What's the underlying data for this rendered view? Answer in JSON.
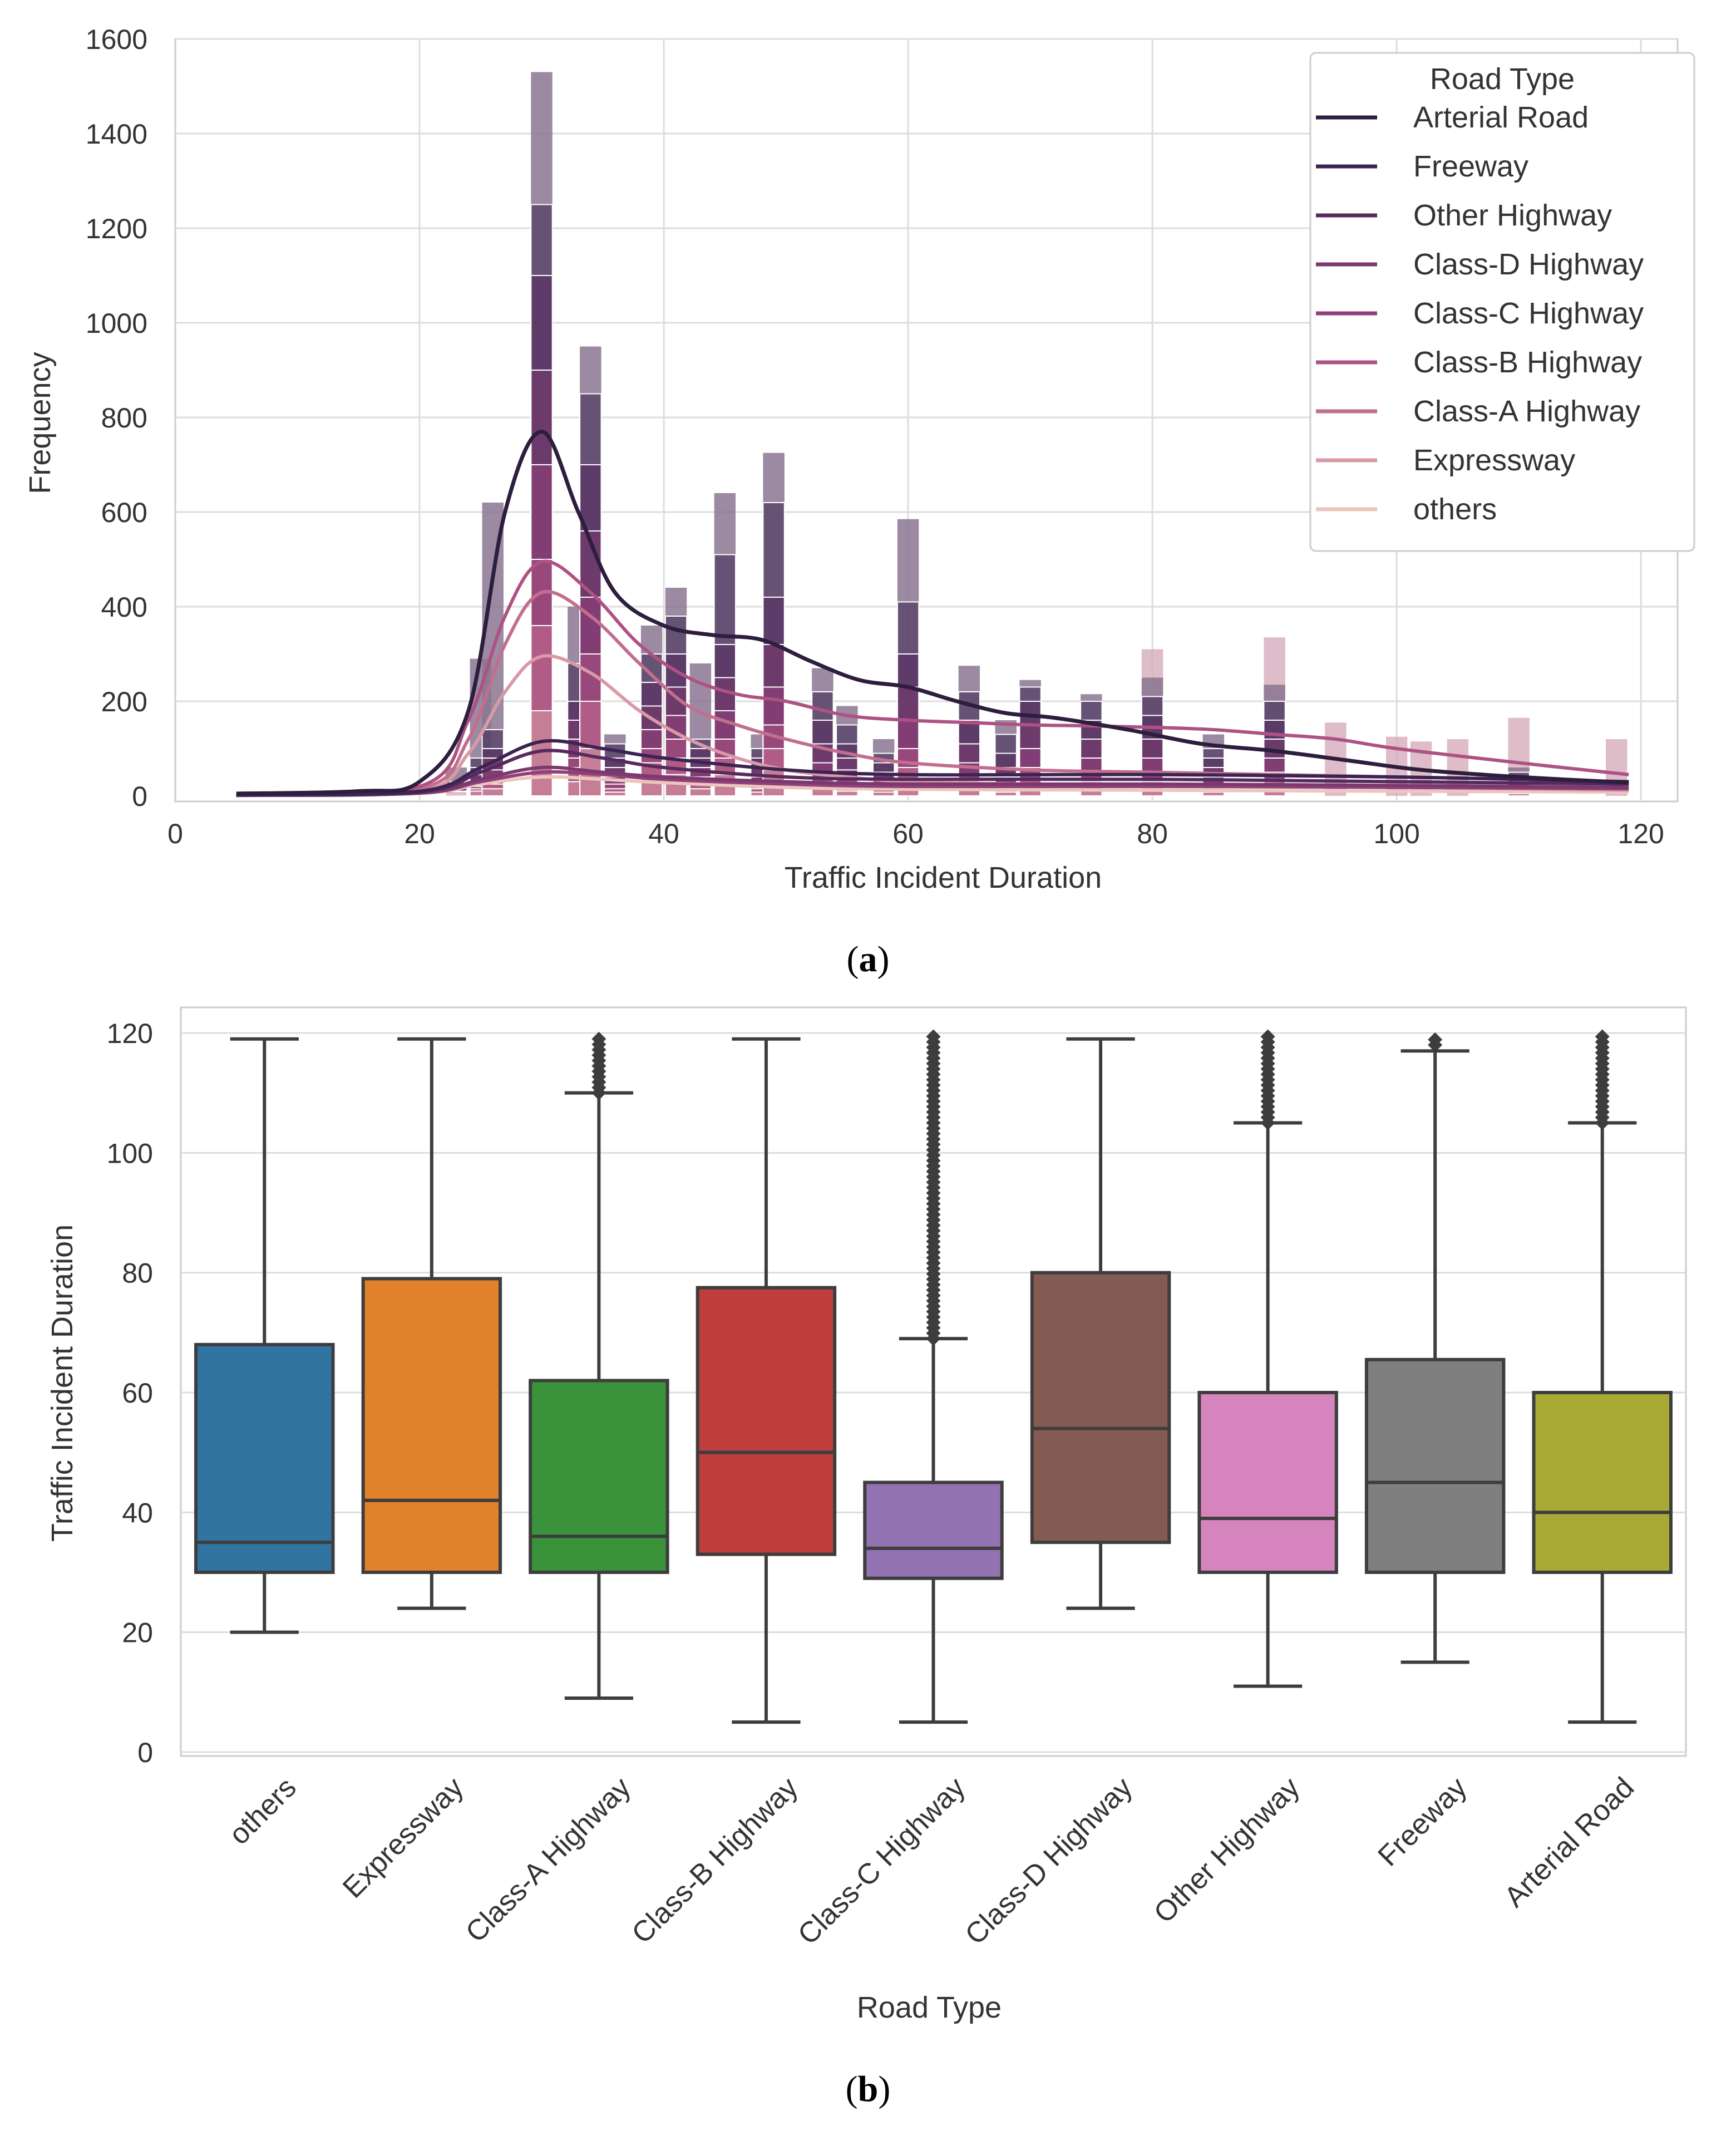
{
  "chart_data": [
    {
      "type": "histogram",
      "panel_label": [
        "(",
        "a",
        ")"
      ],
      "xlabel": "Traffic Incident Duration",
      "ylabel": "Frequency",
      "xlim": [
        0,
        123
      ],
      "ylim": [
        0,
        1600
      ],
      "xticks": [
        0,
        20,
        40,
        60,
        80,
        100,
        120
      ],
      "yticks": [
        0,
        200,
        400,
        600,
        800,
        1000,
        1200,
        1400,
        1600
      ],
      "grid": true,
      "legend_title": "Road Type",
      "legend_position": "top-right",
      "series_order": [
        "Arterial Road",
        "Freeway",
        "Other Highway",
        "Class-D Highway",
        "Class-C Highway",
        "Class-B Highway",
        "Class-A Highway",
        "Expressway",
        "others"
      ],
      "colors": [
        "#2d1e3e",
        "#3b2452",
        "#572a5e",
        "#7a3a6e",
        "#933f7c",
        "#ad5283",
        "#c26e8e",
        "#d89aa6",
        "#ebc6bc"
      ],
      "bar_color": "#8a7590",
      "bar_color_light": "#d3a5b7",
      "stack_values": [
        [
          23,
          60,
          25,
          30,
          20,
          10,
          8,
          8,
          4
        ],
        [
          25,
          290,
          80,
          60,
          45,
          30,
          20,
          15,
          10
        ],
        [
          26,
          620,
          140,
          100,
          80,
          55,
          35,
          25,
          15
        ],
        [
          30,
          1530,
          1250,
          1100,
          900,
          700,
          500,
          360,
          180
        ],
        [
          33,
          400,
          280,
          200,
          160,
          120,
          80,
          60,
          30
        ],
        [
          34,
          950,
          850,
          700,
          560,
          420,
          300,
          200,
          100
        ],
        [
          36,
          130,
          110,
          80,
          60,
          40,
          25,
          15,
          8
        ],
        [
          39,
          360,
          300,
          240,
          190,
          140,
          100,
          70,
          40
        ],
        [
          41,
          440,
          380,
          300,
          230,
          170,
          120,
          80,
          45
        ],
        [
          43,
          280,
          120,
          100,
          80,
          60,
          40,
          25,
          15
        ],
        [
          45,
          640,
          510,
          320,
          250,
          180,
          120,
          80,
          45
        ],
        [
          48,
          130,
          100,
          80,
          60,
          40,
          25,
          15,
          8
        ],
        [
          49,
          725,
          620,
          420,
          320,
          230,
          150,
          100,
          55
        ],
        [
          53,
          270,
          220,
          160,
          110,
          70,
          45,
          30,
          15
        ],
        [
          55,
          190,
          150,
          110,
          80,
          55,
          35,
          20,
          10
        ],
        [
          58,
          120,
          90,
          70,
          50,
          35,
          25,
          15,
          8
        ],
        [
          60,
          585,
          410,
          300,
          230,
          160,
          100,
          60,
          30
        ],
        [
          65,
          275,
          220,
          160,
          110,
          70,
          45,
          30,
          15
        ],
        [
          68,
          160,
          130,
          90,
          60,
          40,
          25,
          15,
          8
        ],
        [
          70,
          245,
          230,
          200,
          150,
          100,
          60,
          35,
          18
        ],
        [
          75,
          215,
          200,
          160,
          120,
          80,
          50,
          30,
          15
        ],
        [
          80,
          250,
          210,
          170,
          120,
          80,
          50,
          30,
          15
        ],
        [
          85,
          130,
          100,
          80,
          60,
          40,
          25,
          15,
          8
        ],
        [
          90,
          235,
          200,
          160,
          120,
          80,
          50,
          30,
          15
        ],
        [
          110,
          60,
          50,
          40,
          30,
          20,
          15,
          10,
          5
        ]
      ],
      "light_bars": [
        [
          80,
          310
        ],
        [
          90,
          335
        ],
        [
          95,
          155
        ],
        [
          100,
          125
        ],
        [
          102,
          115
        ],
        [
          105,
          120
        ],
        [
          110,
          165
        ],
        [
          118,
          120
        ]
      ],
      "kde": [
        {
          "name": "Arterial Road",
          "x": [
            5,
            15,
            20,
            24,
            27,
            30,
            33,
            36,
            40,
            44,
            48,
            52,
            56,
            60,
            64,
            68,
            72,
            78,
            84,
            90,
            96,
            102,
            110,
            119
          ],
          "y": [
            5,
            10,
            30,
            180,
            600,
            770,
            600,
            430,
            360,
            340,
            330,
            285,
            245,
            230,
            200,
            175,
            165,
            140,
            110,
            95,
            75,
            55,
            40,
            28
          ]
        },
        {
          "name": "Freeway",
          "x": [
            5,
            20,
            25,
            30,
            35,
            40,
            50,
            60,
            80,
            100,
            119
          ],
          "y": [
            2,
            10,
            60,
            115,
            100,
            80,
            55,
            45,
            45,
            40,
            30
          ]
        },
        {
          "name": "Other Highway",
          "x": [
            5,
            20,
            25,
            30,
            35,
            40,
            50,
            60,
            80,
            100,
            119
          ],
          "y": [
            2,
            8,
            50,
            95,
            80,
            60,
            40,
            35,
            35,
            30,
            25
          ]
        },
        {
          "name": "Class-D Highway",
          "x": [
            5,
            20,
            25,
            30,
            35,
            40,
            50,
            60,
            80,
            100,
            119
          ],
          "y": [
            1,
            6,
            35,
            60,
            50,
            40,
            30,
            25,
            25,
            22,
            18
          ]
        },
        {
          "name": "Class-C Highway",
          "x": [
            5,
            20,
            25,
            30,
            35,
            40,
            50,
            60,
            80,
            100,
            119
          ],
          "y": [
            1,
            6,
            30,
            50,
            45,
            35,
            25,
            20,
            20,
            18,
            15
          ]
        },
        {
          "name": "Class-B Highway",
          "x": [
            5,
            20,
            24,
            27,
            30,
            34,
            38,
            42,
            46,
            50,
            55,
            60,
            65,
            70,
            75,
            80,
            85,
            90,
            95,
            100,
            110,
            119
          ],
          "y": [
            2,
            20,
            160,
            380,
            495,
            430,
            320,
            250,
            215,
            200,
            170,
            160,
            155,
            150,
            148,
            145,
            140,
            130,
            120,
            100,
            70,
            45
          ]
        },
        {
          "name": "Class-A Highway",
          "x": [
            5,
            20,
            24,
            27,
            30,
            34,
            38,
            42,
            46,
            50,
            55,
            60,
            70,
            80,
            90,
            100,
            110,
            119
          ],
          "y": [
            2,
            15,
            120,
            320,
            430,
            380,
            280,
            190,
            150,
            120,
            90,
            70,
            55,
            50,
            45,
            40,
            35,
            30
          ]
        },
        {
          "name": "Expressway",
          "x": [
            5,
            20,
            24,
            27,
            30,
            34,
            38,
            42,
            46,
            50,
            55,
            60,
            70,
            80,
            90,
            100,
            110,
            119
          ],
          "y": [
            2,
            10,
            90,
            220,
            295,
            260,
            180,
            120,
            80,
            55,
            40,
            30,
            25,
            22,
            20,
            18,
            15,
            12
          ]
        },
        {
          "name": "others",
          "x": [
            5,
            20,
            25,
            30,
            35,
            40,
            50,
            60,
            80,
            100,
            119
          ],
          "y": [
            1,
            5,
            25,
            40,
            35,
            28,
            18,
            14,
            12,
            10,
            8
          ]
        }
      ]
    },
    {
      "type": "box",
      "panel_label": [
        "(",
        "b",
        ")"
      ],
      "xlabel": "Road Type",
      "ylabel": "Traffic Incident Duration",
      "ylim": [
        -3,
        124
      ],
      "yticks": [
        0,
        20,
        40,
        60,
        80,
        100,
        120
      ],
      "grid": true,
      "categories": [
        "others",
        "Expressway",
        "Class-A Highway",
        "Class-B Highway",
        "Class-C Highway",
        "Class-D Highway",
        "Other Highway",
        "Freeway",
        "Arterial Road"
      ],
      "colors": [
        "#3274a1",
        "#e1812c",
        "#3a923a",
        "#c03d3e",
        "#9372b2",
        "#845b53",
        "#d684bd",
        "#7f7f7f",
        "#a9aa35"
      ],
      "boxes": [
        {
          "whislo": 20,
          "q1": 30,
          "med": 35,
          "q3": 68,
          "whishi": 119,
          "fliers_from": null
        },
        {
          "whislo": 24,
          "q1": 30,
          "med": 42,
          "q3": 79,
          "whishi": 119,
          "fliers_from": null
        },
        {
          "whislo": 9,
          "q1": 30,
          "med": 36,
          "q3": 62,
          "whishi": 110,
          "fliers_from": 110
        },
        {
          "whislo": 5,
          "q1": 33,
          "med": 50,
          "q3": 77.5,
          "whishi": 119,
          "fliers_from": null
        },
        {
          "whislo": 5,
          "q1": 29,
          "med": 34,
          "q3": 45,
          "whishi": 69,
          "fliers_from": 69
        },
        {
          "whislo": 24,
          "q1": 35,
          "med": 54,
          "q3": 80,
          "whishi": 119,
          "fliers_from": null
        },
        {
          "whislo": 11,
          "q1": 30,
          "med": 39,
          "q3": 60,
          "whishi": 105,
          "fliers_from": 105
        },
        {
          "whislo": 15,
          "q1": 30,
          "med": 45,
          "q3": 65.5,
          "whishi": 117,
          "fliers_from": 118
        },
        {
          "whislo": 5,
          "q1": 30,
          "med": 40,
          "q3": 60,
          "whishi": 105,
          "fliers_from": 105
        }
      ]
    }
  ]
}
